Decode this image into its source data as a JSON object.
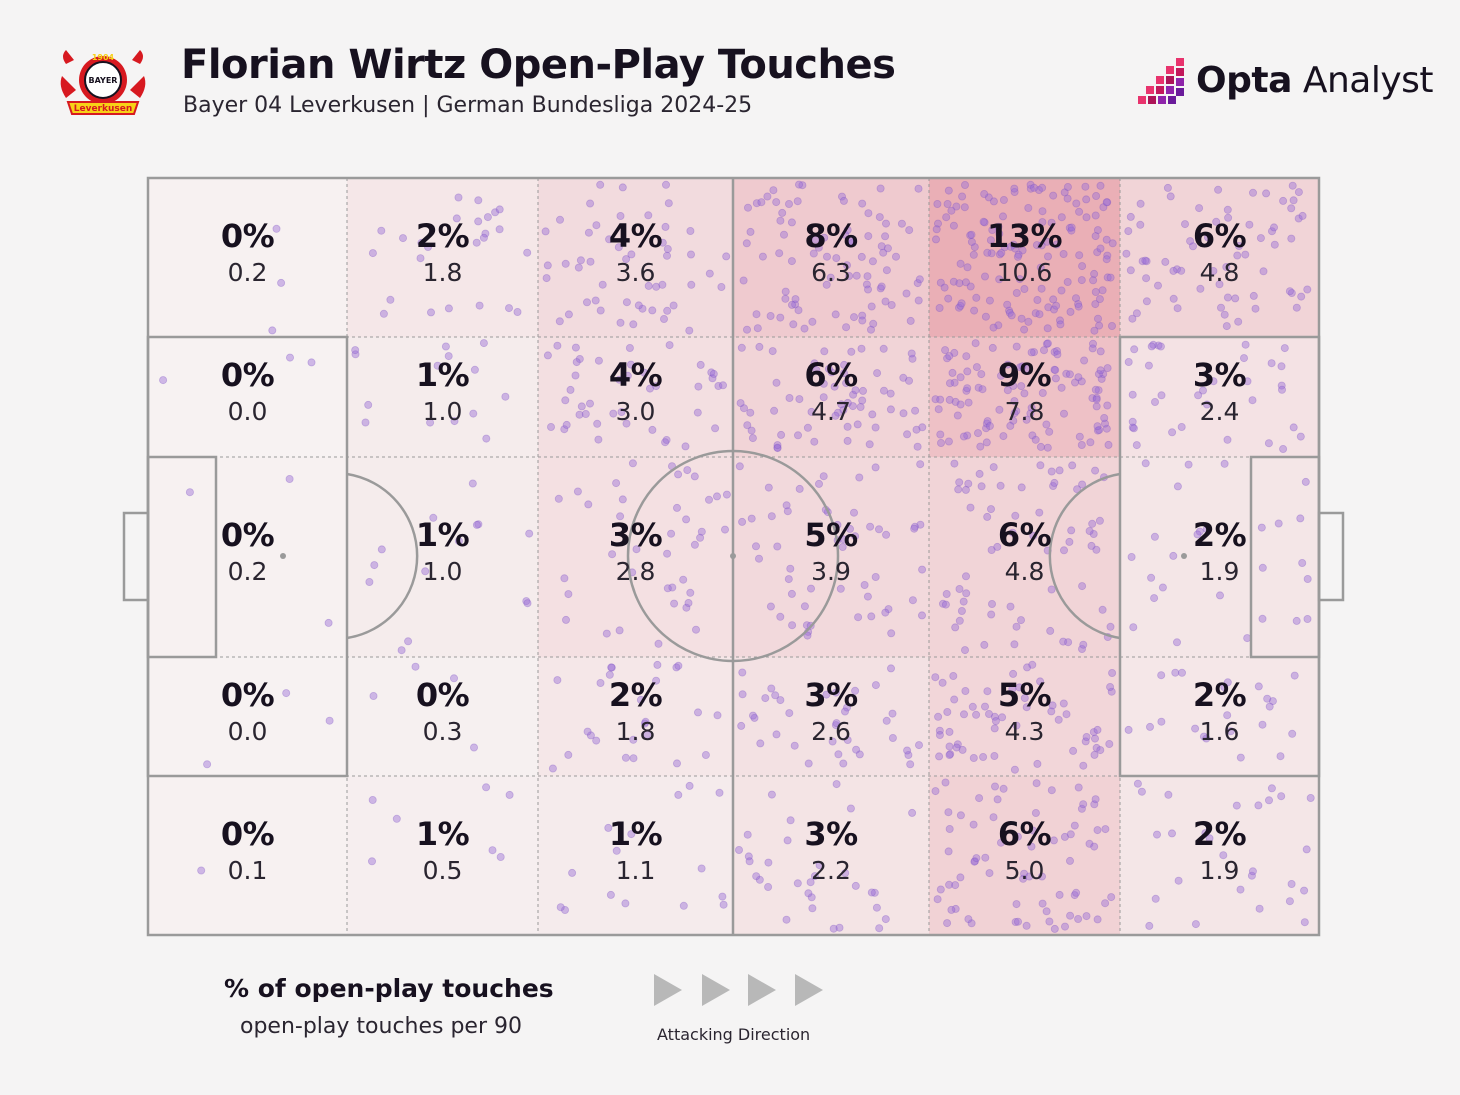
{
  "header": {
    "club_logo_text_top": "1904",
    "club_logo_text_mid": "BAYER",
    "club_logo_text_bottom": "Leverkusen",
    "title": "Florian Wirtz Open-Play Touches",
    "subtitle": "Bayer 04 Leverkusen | German Bundesliga 2024-25"
  },
  "brand": {
    "name_bold": "Opta",
    "name_light": " Analyst",
    "colors": {
      "pink": "#e8336d",
      "purple": "#6a1b9a"
    }
  },
  "legend": {
    "main": "% of open-play touches",
    "sub": "open-play touches per 90",
    "direction_label": "Attacking Direction",
    "direction_icon": "play-triangle-icon"
  },
  "colors": {
    "background": "#f5f4f4",
    "pitch_line": "#9a9a9a",
    "heat_max": "#e8a3ab",
    "dot": "#9b6fd6"
  },
  "chart_data": {
    "type": "heatmap",
    "title": "Florian Wirtz Open-Play Touches",
    "columns": 6,
    "rows": 5,
    "cells": [
      [
        {
          "pct": "0%",
          "per90": "0.2"
        },
        {
          "pct": "2%",
          "per90": "1.8"
        },
        {
          "pct": "4%",
          "per90": "3.6"
        },
        {
          "pct": "8%",
          "per90": "6.3"
        },
        {
          "pct": "13%",
          "per90": "10.6"
        },
        {
          "pct": "6%",
          "per90": "4.8"
        }
      ],
      [
        {
          "pct": "0%",
          "per90": "0.0"
        },
        {
          "pct": "1%",
          "per90": "1.0"
        },
        {
          "pct": "4%",
          "per90": "3.0"
        },
        {
          "pct": "6%",
          "per90": "4.7"
        },
        {
          "pct": "9%",
          "per90": "7.8"
        },
        {
          "pct": "3%",
          "per90": "2.4"
        }
      ],
      [
        {
          "pct": "0%",
          "per90": "0.2"
        },
        {
          "pct": "1%",
          "per90": "1.0"
        },
        {
          "pct": "3%",
          "per90": "2.8"
        },
        {
          "pct": "5%",
          "per90": "3.9"
        },
        {
          "pct": "6%",
          "per90": "4.8"
        },
        {
          "pct": "2%",
          "per90": "1.9"
        }
      ],
      [
        {
          "pct": "0%",
          "per90": "0.0"
        },
        {
          "pct": "0%",
          "per90": "0.3"
        },
        {
          "pct": "2%",
          "per90": "1.8"
        },
        {
          "pct": "3%",
          "per90": "2.6"
        },
        {
          "pct": "5%",
          "per90": "4.3"
        },
        {
          "pct": "2%",
          "per90": "1.6"
        }
      ],
      [
        {
          "pct": "0%",
          "per90": "0.1"
        },
        {
          "pct": "1%",
          "per90": "0.5"
        },
        {
          "pct": "1%",
          "per90": "1.1"
        },
        {
          "pct": "3%",
          "per90": "2.2"
        },
        {
          "pct": "6%",
          "per90": "5.0"
        },
        {
          "pct": "2%",
          "per90": "1.9"
        }
      ]
    ]
  }
}
